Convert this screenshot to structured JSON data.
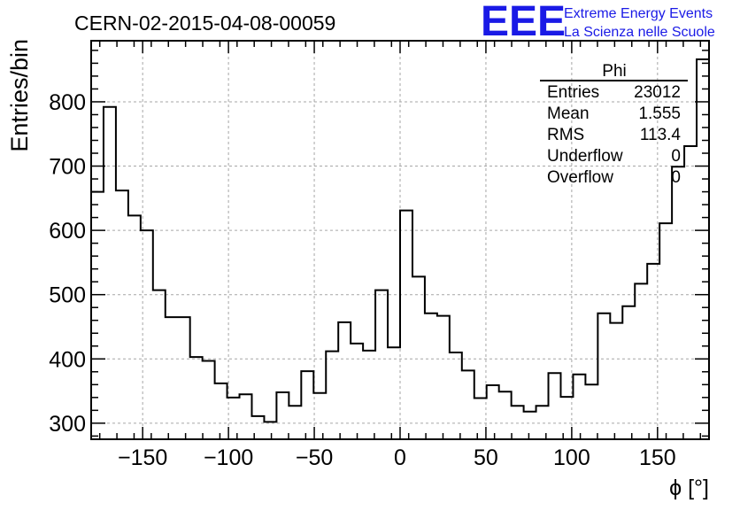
{
  "chart_data": {
    "type": "histogram",
    "title": "CERN-02-2015-04-08-00059",
    "xlabel": "ϕ [°]",
    "ylabel": "Entries/bin",
    "xlim": [
      -180,
      180
    ],
    "ylim": [
      275,
      895
    ],
    "x_ticks": [
      -150,
      -100,
      -50,
      0,
      50,
      100,
      150
    ],
    "x_tick_labels": [
      "−150",
      "−100",
      "−50",
      "0",
      "50",
      "100",
      "150"
    ],
    "y_ticks": [
      300,
      400,
      500,
      600,
      700,
      800
    ],
    "y_tick_labels": [
      "300",
      "400",
      "500",
      "600",
      "700",
      "800"
    ],
    "grid": true,
    "bin_edges_start": -180,
    "bin_width": 7.2,
    "values": [
      660,
      792,
      662,
      623,
      600,
      507,
      465,
      465,
      403,
      397,
      362,
      340,
      345,
      311,
      302,
      348,
      327,
      381,
      347,
      412,
      457,
      424,
      413,
      507,
      418,
      631,
      528,
      471,
      467,
      410,
      382,
      339,
      359,
      349,
      327,
      318,
      327,
      378,
      341,
      376,
      360,
      471,
      456,
      482,
      517,
      548,
      611,
      699,
      731,
      866
    ],
    "stats_box": {
      "title": "Phi",
      "rows": [
        {
          "label": "Entries",
          "value": "23012"
        },
        {
          "label": "Mean",
          "value": "1.555"
        },
        {
          "label": "RMS",
          "value": "113.4"
        },
        {
          "label": "Underflow",
          "value": "0"
        },
        {
          "label": "Overflow",
          "value": "0"
        }
      ]
    },
    "logo": {
      "text": "EEE",
      "line1": "Extreme Energy Events",
      "line2": "La Scienza nelle Scuole"
    },
    "colors": {
      "histogram": "#000000",
      "grid": "#a6a6a6",
      "logo": "#1a1ae6"
    }
  }
}
